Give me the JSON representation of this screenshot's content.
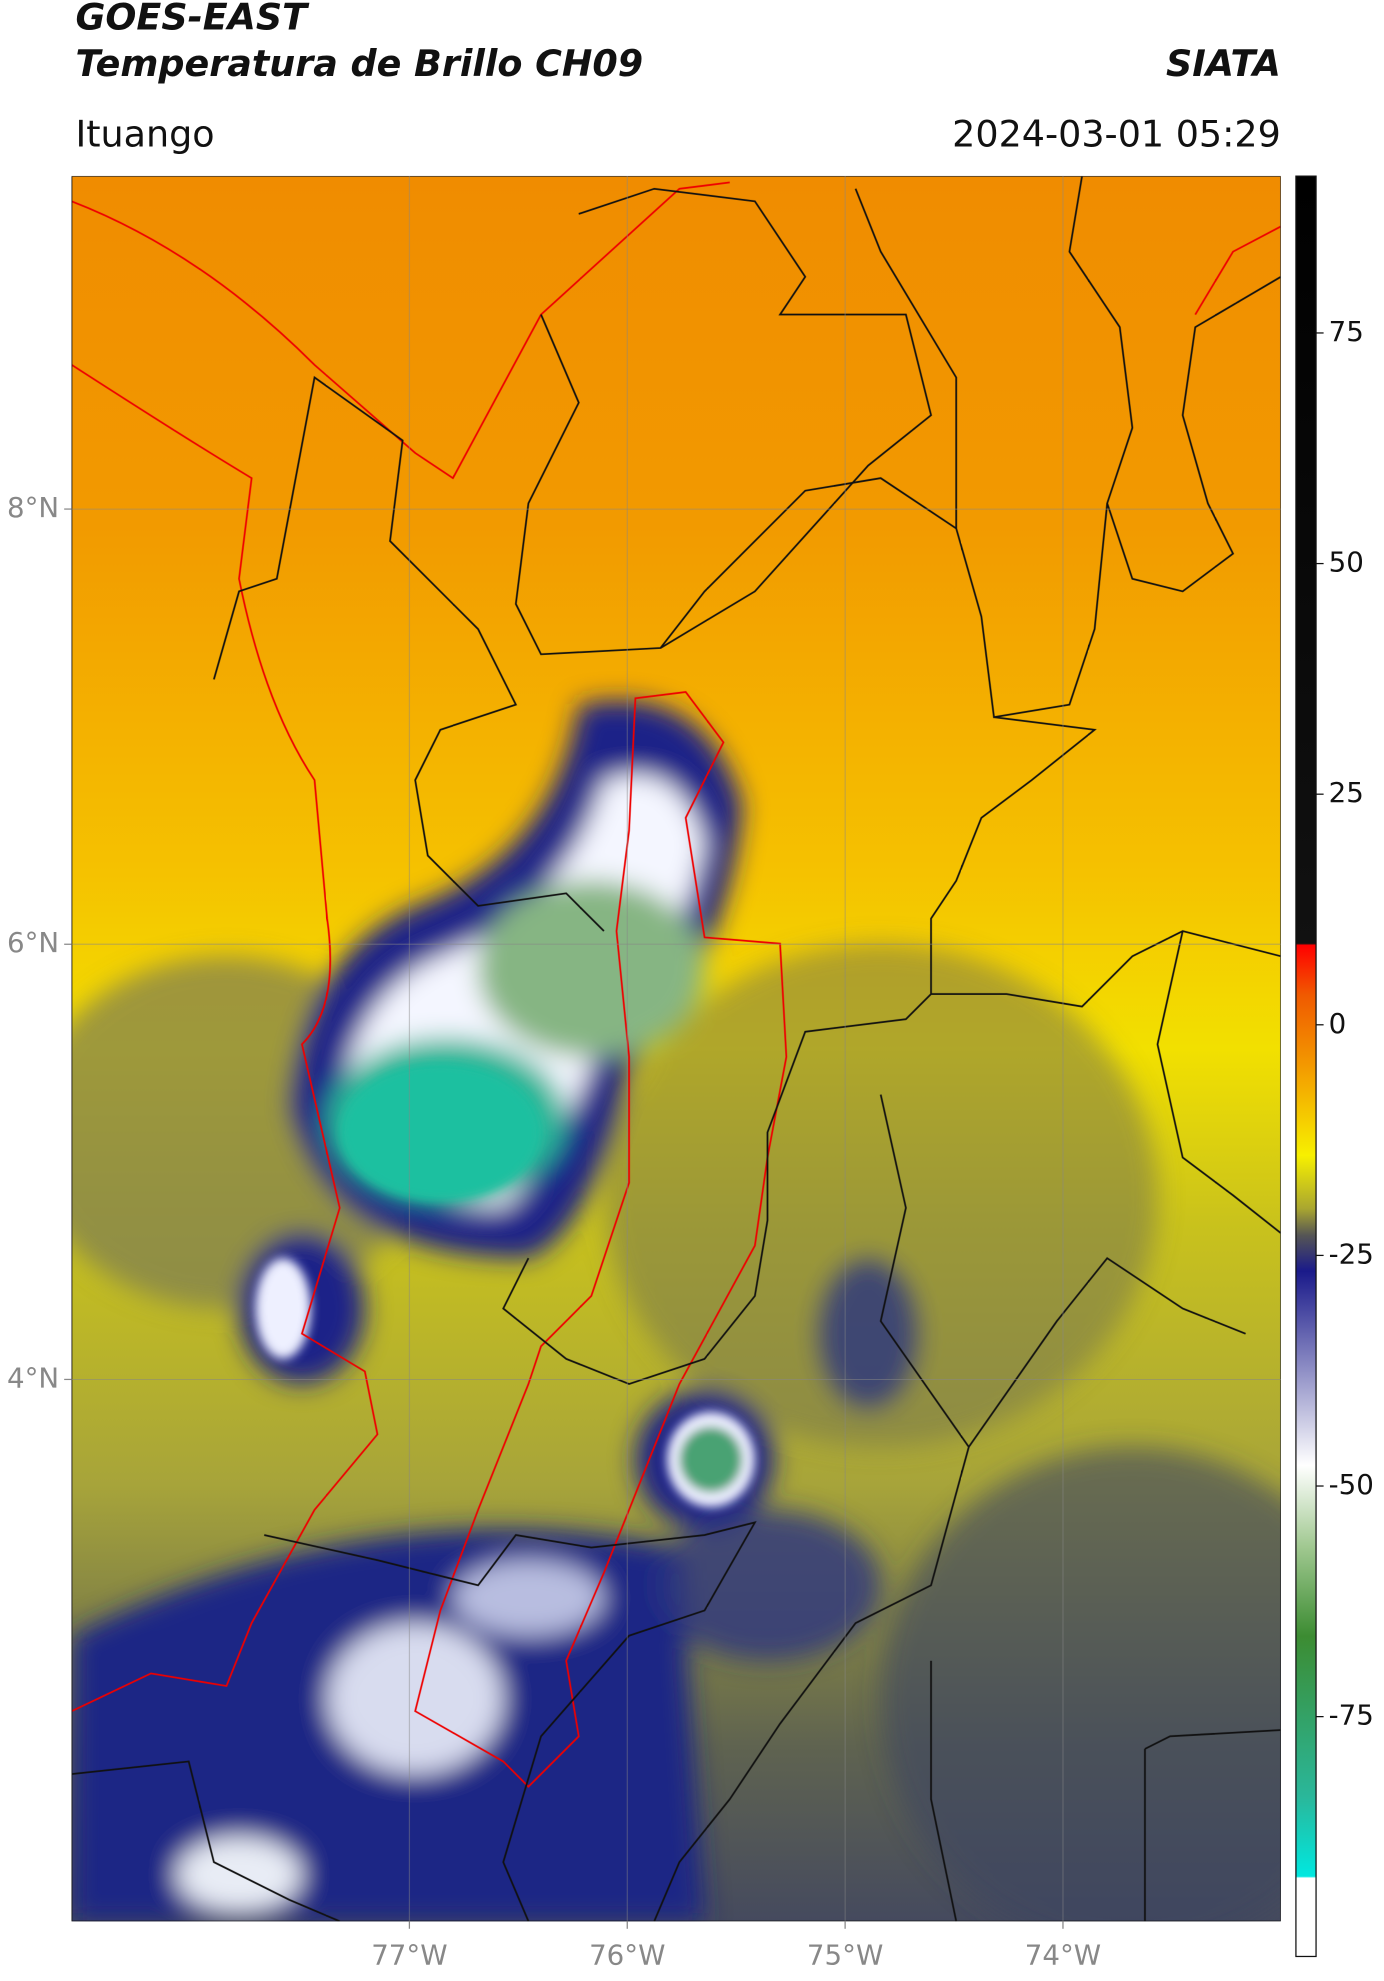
{
  "header": {
    "title": "GOES-EAST",
    "subtitle": "Temperatura de Brillo CH09",
    "source": "SIATA",
    "location": "Ituango",
    "datetime": "2024-03-01 05:29"
  },
  "map": {
    "xlim": [
      -78.55,
      -73.0
    ],
    "ylim": [
      1.51,
      9.53
    ],
    "xticks": [
      {
        "value": -77,
        "label": "77°W"
      },
      {
        "value": -76,
        "label": "76°W"
      },
      {
        "value": -75,
        "label": "75°W"
      },
      {
        "value": -74,
        "label": "74°W"
      }
    ],
    "yticks": [
      {
        "value": 8,
        "label": "8°N"
      },
      {
        "value": 6,
        "label": "6°N"
      },
      {
        "value": 4,
        "label": "4°N"
      }
    ],
    "grid": true
  },
  "colorbar": {
    "lim": [
      -101,
      92
    ],
    "ticks": [
      75,
      50,
      25,
      0,
      -25,
      -50,
      -75
    ]
  }
}
